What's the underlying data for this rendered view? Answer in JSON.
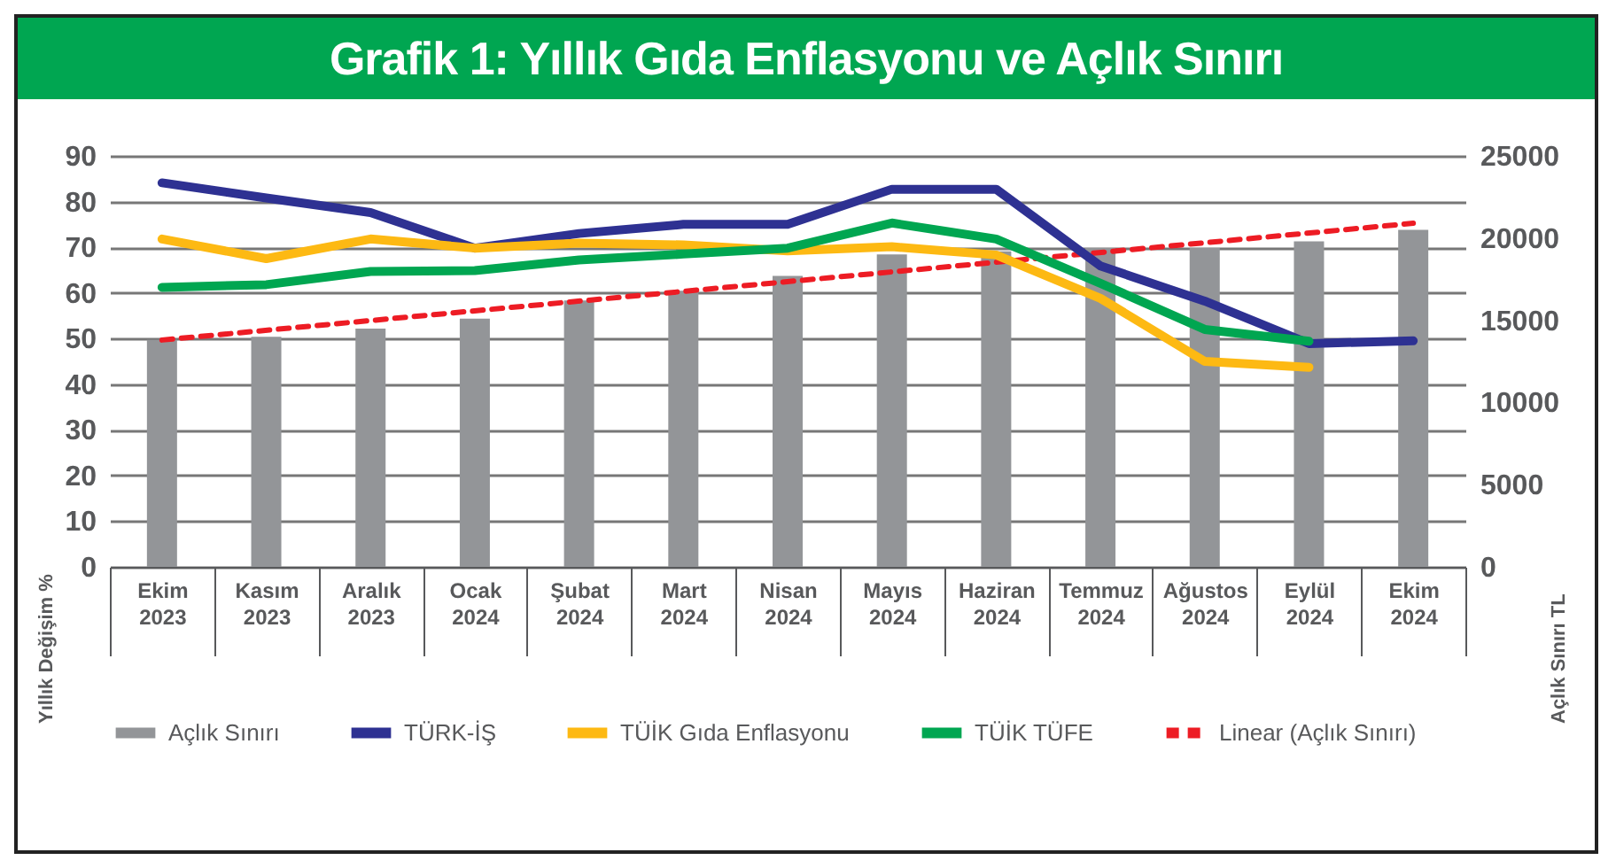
{
  "chart_data": {
    "type": "bar",
    "title": "Grafik 1: Yıllık Gıda Enflasyonu ve Açlık Sınırı",
    "ylabel": "Yıllık Değişim %",
    "y2label": "Açlık Sınırı TL",
    "categories": [
      "Ekim 2023",
      "Kasım 2023",
      "Aralık 2023",
      "Ocak 2024",
      "Şubat 2024",
      "Mart 2024",
      "Nisan 2024",
      "Mayıs 2024",
      "Haziran 2024",
      "Temmuz 2024",
      "Ağustos 2024",
      "Eylül 2024",
      "Ekim 2024"
    ],
    "ylim": [
      0,
      90
    ],
    "yticks": [
      0,
      10,
      20,
      30,
      40,
      50,
      60,
      70,
      80,
      90
    ],
    "y2lim": [
      0,
      25000
    ],
    "y2ticks": [
      0,
      5000,
      10000,
      15000,
      20000,
      25000
    ],
    "grid": "y",
    "legend": "bottom",
    "series": [
      {
        "name": "Açlık Sınırı",
        "color": "#939598",
        "axis": "y2",
        "values": [
          13800,
          14000,
          14500,
          15100,
          16200,
          16800,
          17700,
          19000,
          19200,
          19400,
          19400,
          19800,
          20500
        ]
      },
      {
        "name": "TÜRK-İŞ",
        "type": "line",
        "color": "#2e3192",
        "values": [
          84.1,
          80.8,
          77.6,
          69.8,
          73,
          75,
          75,
          82.7,
          82.7,
          65.9,
          58.2,
          48.9,
          49.5
        ]
      },
      {
        "name": "TÜİK Gıda Enflasyonu",
        "type": "line",
        "color": "#fdb913",
        "values": [
          71.8,
          67.5,
          71.8,
          69.8,
          70.9,
          70.5,
          69.2,
          70.1,
          68.3,
          58.8,
          45,
          43.7,
          null
        ]
      },
      {
        "name": "TÜİK TÜFE",
        "type": "line",
        "color": "#00a651",
        "values": [
          61.2,
          61.8,
          64.7,
          64.9,
          67.2,
          68.5,
          69.8,
          75.3,
          71.8,
          62.1,
          52,
          49.4,
          null
        ]
      },
      {
        "name": "Linear (Açlık Sınırı)",
        "type": "line",
        "color": "#ed1c24",
        "axis": "y2",
        "line_style": "dashed",
        "x": [
          "Ekim 2023",
          "Ekim 2024"
        ],
        "values": [
          13800,
          20900
        ]
      }
    ]
  }
}
